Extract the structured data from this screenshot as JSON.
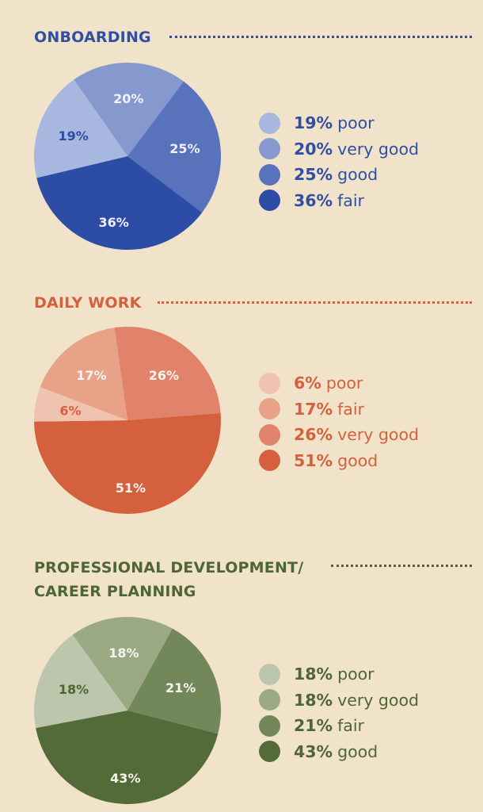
{
  "sections": [
    {
      "title": "ONBOARDING",
      "title_color": "#2f4fa6",
      "chart_data": {
        "type": "pie",
        "title": "ONBOARDING",
        "slices": [
          {
            "label": "very good",
            "pct_label": "20%",
            "value": 20,
            "color": "#8599cf",
            "text_color": "#f4f1ff"
          },
          {
            "label": "good",
            "pct_label": "25%",
            "value": 25,
            "color": "#5872bb",
            "text_color": "#f4f1ff"
          },
          {
            "label": "fair",
            "pct_label": "36%",
            "value": 36,
            "color": "#2d4ca5",
            "text_color": "#f4f1ff"
          },
          {
            "label": "poor",
            "pct_label": "19%",
            "value": 19,
            "color": "#a8b7e0",
            "text_color": "#2d4ca5"
          }
        ]
      },
      "legend": [
        {
          "pct": "19%",
          "label": "poor",
          "color": "#a8b7e0"
        },
        {
          "pct": "20%",
          "label": "very good",
          "color": "#8599cf"
        },
        {
          "pct": "25%",
          "label": "good",
          "color": "#5872bb"
        },
        {
          "pct": "36%",
          "label": "fair",
          "color": "#2d4ca5"
        }
      ]
    },
    {
      "title": "DAILY WORK",
      "title_color": "#d5603d",
      "chart_data": {
        "type": "pie",
        "title": "DAILY WORK",
        "slices": [
          {
            "label": "very good",
            "pct_label": "26%",
            "value": 26,
            "color": "#e0836a",
            "text_color": "#fff4ee"
          },
          {
            "label": "good",
            "pct_label": "51%",
            "value": 51,
            "color": "#d5603d",
            "text_color": "#fff4ee"
          },
          {
            "label": "poor",
            "pct_label": "6%",
            "value": 6,
            "color": "#f0c3b0",
            "text_color": "#d5603d"
          },
          {
            "label": "fair",
            "pct_label": "17%",
            "value": 17,
            "color": "#e8a288",
            "text_color": "#fff4ee"
          }
        ]
      },
      "legend": [
        {
          "pct": "6%",
          "label": "poor",
          "color": "#f0c3b0"
        },
        {
          "pct": "17%",
          "label": "fair",
          "color": "#e8a288"
        },
        {
          "pct": "26%",
          "label": "very good",
          "color": "#e0836a"
        },
        {
          "pct": "51%",
          "label": "good",
          "color": "#d5603d"
        }
      ]
    },
    {
      "title_lines": [
        "PROFESSIONAL DEVELOPMENT/",
        "CAREER PLANNING"
      ],
      "title_color": "#4e6534",
      "chart_data": {
        "type": "pie",
        "title": "PROFESSIONAL DEVELOPMENT/ CAREER PLANNING",
        "slices": [
          {
            "label": "very good",
            "pct_label": "18%",
            "value": 18,
            "color": "#9aa984",
            "text_color": "#f6f4ec"
          },
          {
            "label": "fair",
            "pct_label": "21%",
            "value": 21,
            "color": "#72875a",
            "text_color": "#f6f4ec"
          },
          {
            "label": "good",
            "pct_label": "43%",
            "value": 43,
            "color": "#536b38",
            "text_color": "#f6f4ec"
          },
          {
            "label": "poor",
            "pct_label": "18%",
            "value": 18,
            "color": "#bcc6ad",
            "text_color": "#4e6534"
          }
        ]
      },
      "legend": [
        {
          "pct": "18%",
          "label": "poor",
          "color": "#bcc6ad"
        },
        {
          "pct": "18%",
          "label": "very good",
          "color": "#9aa984"
        },
        {
          "pct": "21%",
          "label": "fair",
          "color": "#72875a"
        },
        {
          "pct": "43%",
          "label": "good",
          "color": "#536b38"
        }
      ]
    }
  ]
}
